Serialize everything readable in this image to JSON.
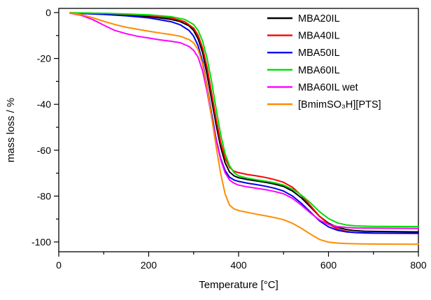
{
  "figure": {
    "background": "#ffffff"
  },
  "chart_data": {
    "type": "line",
    "title": "",
    "xlabel": "Temperature [°C]",
    "ylabel": "mass loss / %",
    "xlim": [
      0,
      800
    ],
    "ylim": [
      -105,
      2
    ],
    "x_ticks": [
      0,
      200,
      400,
      600,
      800
    ],
    "x_minor_step": 100,
    "y_ticks": [
      0,
      -20,
      -40,
      -60,
      -80,
      -100
    ],
    "y_minor_step": 10,
    "grid": false,
    "legend_position": "top-right",
    "series": [
      {
        "name": "MBA20IL",
        "color": "#000000",
        "points": [
          [
            25,
            -0.2
          ],
          [
            100,
            -0.6
          ],
          [
            150,
            -1.0
          ],
          [
            200,
            -1.7
          ],
          [
            250,
            -3.0
          ],
          [
            270,
            -3.9
          ],
          [
            290,
            -5.8
          ],
          [
            300,
            -7.8
          ],
          [
            310,
            -11.5
          ],
          [
            320,
            -17.5
          ],
          [
            330,
            -27
          ],
          [
            340,
            -38
          ],
          [
            350,
            -49
          ],
          [
            360,
            -58.5
          ],
          [
            370,
            -65.5
          ],
          [
            380,
            -69.5
          ],
          [
            390,
            -71.2
          ],
          [
            400,
            -72.0
          ],
          [
            420,
            -72.8
          ],
          [
            440,
            -73.4
          ],
          [
            460,
            -74.0
          ],
          [
            480,
            -74.8
          ],
          [
            500,
            -75.8
          ],
          [
            520,
            -77.8
          ],
          [
            540,
            -80.8
          ],
          [
            560,
            -84.8
          ],
          [
            580,
            -88.8
          ],
          [
            600,
            -91.8
          ],
          [
            620,
            -93.6
          ],
          [
            640,
            -94.6
          ],
          [
            660,
            -95.1
          ],
          [
            680,
            -95.3
          ],
          [
            700,
            -95.4
          ],
          [
            750,
            -95.5
          ],
          [
            800,
            -95.6
          ]
        ]
      },
      {
        "name": "MBA40IL",
        "color": "#ff0000",
        "points": [
          [
            25,
            -0.1
          ],
          [
            100,
            -0.4
          ],
          [
            150,
            -0.8
          ],
          [
            200,
            -1.3
          ],
          [
            250,
            -2.3
          ],
          [
            280,
            -4.0
          ],
          [
            300,
            -6.8
          ],
          [
            310,
            -10.0
          ],
          [
            320,
            -15.5
          ],
          [
            330,
            -24
          ],
          [
            340,
            -35
          ],
          [
            350,
            -46.5
          ],
          [
            360,
            -56.5
          ],
          [
            370,
            -63.5
          ],
          [
            380,
            -67.5
          ],
          [
            390,
            -69.2
          ],
          [
            400,
            -69.8
          ],
          [
            420,
            -70.6
          ],
          [
            440,
            -71.2
          ],
          [
            460,
            -71.9
          ],
          [
            480,
            -72.8
          ],
          [
            500,
            -74.0
          ],
          [
            520,
            -76.2
          ],
          [
            540,
            -79.8
          ],
          [
            560,
            -84.2
          ],
          [
            580,
            -88.8
          ],
          [
            600,
            -92.2
          ],
          [
            620,
            -94.4
          ],
          [
            640,
            -95.4
          ],
          [
            660,
            -95.9
          ],
          [
            680,
            -96.1
          ],
          [
            700,
            -96.2
          ],
          [
            800,
            -96.3
          ]
        ]
      },
      {
        "name": "MBA50IL",
        "color": "#0000ee",
        "points": [
          [
            25,
            -0.2
          ],
          [
            100,
            -0.8
          ],
          [
            150,
            -1.4
          ],
          [
            200,
            -2.3
          ],
          [
            250,
            -4.0
          ],
          [
            270,
            -5.3
          ],
          [
            290,
            -7.8
          ],
          [
            300,
            -10.3
          ],
          [
            310,
            -14.5
          ],
          [
            320,
            -21.5
          ],
          [
            330,
            -32
          ],
          [
            340,
            -44
          ],
          [
            350,
            -55
          ],
          [
            360,
            -63.5
          ],
          [
            370,
            -68.8
          ],
          [
            380,
            -71.8
          ],
          [
            390,
            -73.0
          ],
          [
            400,
            -73.6
          ],
          [
            420,
            -74.4
          ],
          [
            440,
            -75.0
          ],
          [
            460,
            -75.7
          ],
          [
            480,
            -76.6
          ],
          [
            500,
            -77.8
          ],
          [
            520,
            -80.0
          ],
          [
            540,
            -83.2
          ],
          [
            560,
            -87.0
          ],
          [
            580,
            -90.8
          ],
          [
            600,
            -93.4
          ],
          [
            620,
            -94.9
          ],
          [
            640,
            -95.6
          ],
          [
            660,
            -95.9
          ],
          [
            680,
            -96.0
          ],
          [
            700,
            -96.1
          ],
          [
            800,
            -96.2
          ]
        ]
      },
      {
        "name": "MBA60IL",
        "color": "#00dd00",
        "points": [
          [
            25,
            -0.1
          ],
          [
            100,
            -0.3
          ],
          [
            150,
            -0.6
          ],
          [
            200,
            -1.0
          ],
          [
            250,
            -1.8
          ],
          [
            280,
            -3.0
          ],
          [
            300,
            -5.2
          ],
          [
            310,
            -7.8
          ],
          [
            320,
            -12.5
          ],
          [
            330,
            -20
          ],
          [
            340,
            -30
          ],
          [
            350,
            -42
          ],
          [
            360,
            -53
          ],
          [
            370,
            -61.5
          ],
          [
            380,
            -66.8
          ],
          [
            390,
            -69.8
          ],
          [
            400,
            -71.2
          ],
          [
            420,
            -72.2
          ],
          [
            440,
            -72.9
          ],
          [
            460,
            -73.5
          ],
          [
            480,
            -74.2
          ],
          [
            500,
            -75.2
          ],
          [
            520,
            -77.0
          ],
          [
            540,
            -79.6
          ],
          [
            560,
            -83.0
          ],
          [
            580,
            -86.8
          ],
          [
            600,
            -89.8
          ],
          [
            620,
            -91.7
          ],
          [
            640,
            -92.6
          ],
          [
            660,
            -93.0
          ],
          [
            680,
            -93.1
          ],
          [
            700,
            -93.2
          ],
          [
            800,
            -93.3
          ]
        ]
      },
      {
        "name": "MBA60IL wet",
        "color": "#ff00ff",
        "points": [
          [
            25,
            -0.3
          ],
          [
            50,
            -1.2
          ],
          [
            75,
            -3.0
          ],
          [
            100,
            -5.5
          ],
          [
            125,
            -7.8
          ],
          [
            150,
            -9.2
          ],
          [
            175,
            -10.3
          ],
          [
            200,
            -11.1
          ],
          [
            225,
            -11.9
          ],
          [
            250,
            -12.5
          ],
          [
            270,
            -13.1
          ],
          [
            290,
            -14.8
          ],
          [
            300,
            -16.5
          ],
          [
            310,
            -19.5
          ],
          [
            320,
            -25.5
          ],
          [
            330,
            -34.5
          ],
          [
            340,
            -45.5
          ],
          [
            350,
            -55.5
          ],
          [
            360,
            -64
          ],
          [
            370,
            -69.8
          ],
          [
            380,
            -73.0
          ],
          [
            390,
            -74.4
          ],
          [
            400,
            -75.2
          ],
          [
            420,
            -76.0
          ],
          [
            440,
            -76.6
          ],
          [
            460,
            -77.2
          ],
          [
            480,
            -78.0
          ],
          [
            500,
            -79.0
          ],
          [
            520,
            -81.0
          ],
          [
            540,
            -84.0
          ],
          [
            560,
            -87.4
          ],
          [
            580,
            -90.4
          ],
          [
            600,
            -92.4
          ],
          [
            620,
            -93.3
          ],
          [
            640,
            -93.7
          ],
          [
            660,
            -93.9
          ],
          [
            700,
            -94.0
          ],
          [
            800,
            -94.1
          ]
        ]
      },
      {
        "name": "[BmimSO₃H][PTS]",
        "color": "#ff8c00",
        "points": [
          [
            25,
            -0.2
          ],
          [
            50,
            -0.9
          ],
          [
            75,
            -2.2
          ],
          [
            100,
            -3.8
          ],
          [
            125,
            -5.2
          ],
          [
            150,
            -6.4
          ],
          [
            175,
            -7.3
          ],
          [
            200,
            -8.1
          ],
          [
            225,
            -8.9
          ],
          [
            250,
            -9.6
          ],
          [
            270,
            -10.3
          ],
          [
            290,
            -11.8
          ],
          [
            300,
            -13.2
          ],
          [
            310,
            -16.2
          ],
          [
            320,
            -22.5
          ],
          [
            330,
            -32.5
          ],
          [
            340,
            -45.5
          ],
          [
            350,
            -58.5
          ],
          [
            360,
            -70
          ],
          [
            370,
            -79
          ],
          [
            380,
            -84
          ],
          [
            390,
            -85.6
          ],
          [
            400,
            -86.3
          ],
          [
            420,
            -87.1
          ],
          [
            440,
            -87.9
          ],
          [
            460,
            -88.6
          ],
          [
            480,
            -89.4
          ],
          [
            500,
            -90.3
          ],
          [
            520,
            -91.9
          ],
          [
            540,
            -94.1
          ],
          [
            560,
            -96.6
          ],
          [
            580,
            -98.9
          ],
          [
            600,
            -100.1
          ],
          [
            620,
            -100.5
          ],
          [
            640,
            -100.7
          ],
          [
            660,
            -100.8
          ],
          [
            700,
            -100.9
          ],
          [
            800,
            -101.0
          ]
        ]
      }
    ]
  }
}
